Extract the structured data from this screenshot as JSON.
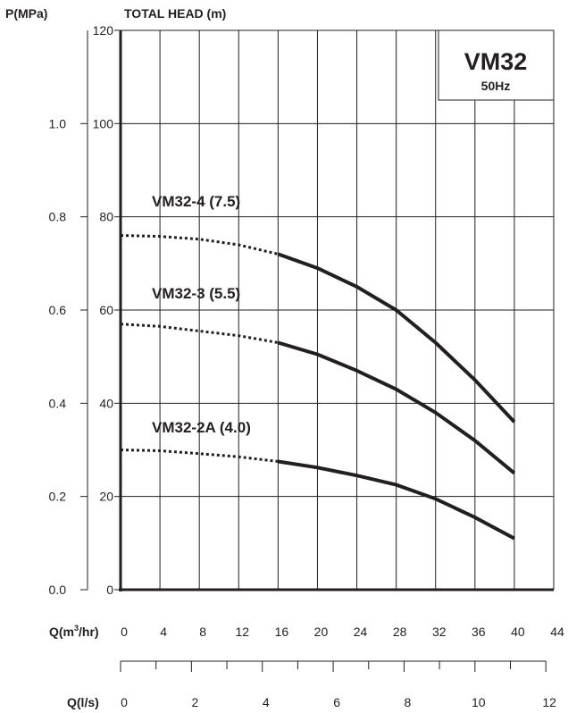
{
  "chart_data": {
    "type": "line",
    "model": "VM32",
    "frequency": "50Hz",
    "ylabel": "TOTAL HEAD (m)",
    "pressure_label": "P(MPa)",
    "xlabel_m3": "Q(m",
    "xlabel_m3_sup": "3",
    "xlabel_m3_tail": "/hr)",
    "xlabel_ls": "Q(l/s)",
    "xlim": [
      0,
      44
    ],
    "ylim": [
      0,
      120
    ],
    "x_ticks": [
      0,
      4,
      8,
      12,
      16,
      20,
      24,
      28,
      32,
      36,
      40,
      44
    ],
    "y_ticks": [
      0,
      20,
      40,
      60,
      80,
      100,
      120
    ],
    "pressure_ticks": [
      {
        "label": "0.0",
        "value": 0.0
      },
      {
        "label": "0.2",
        "value": 0.2
      },
      {
        "label": "0.4",
        "value": 0.4
      },
      {
        "label": "0.6",
        "value": 0.6
      },
      {
        "label": "0.8",
        "value": 0.8
      },
      {
        "label": "1.0",
        "value": 1.0
      }
    ],
    "ls_ticks": [
      0,
      2,
      4,
      6,
      8,
      10,
      12
    ],
    "ls_minor_ticks": [
      0,
      1,
      2,
      3,
      4,
      5,
      6,
      7,
      8,
      9,
      10,
      11,
      12
    ],
    "grid": true,
    "series": [
      {
        "name": "VM32-4 (7.5)",
        "dotted": [
          [
            0,
            76
          ],
          [
            4,
            75.8
          ],
          [
            8,
            75.2
          ],
          [
            12,
            74
          ],
          [
            16,
            72
          ]
        ],
        "solid": [
          [
            16,
            72
          ],
          [
            20,
            69
          ],
          [
            24,
            65
          ],
          [
            28,
            60
          ],
          [
            32,
            53
          ],
          [
            36,
            45
          ],
          [
            40,
            36
          ]
        ]
      },
      {
        "name": "VM32-3 (5.5)",
        "dotted": [
          [
            0,
            57
          ],
          [
            4,
            56.5
          ],
          [
            8,
            55.5
          ],
          [
            12,
            54.5
          ],
          [
            16,
            53
          ]
        ],
        "solid": [
          [
            16,
            53
          ],
          [
            20,
            50.5
          ],
          [
            24,
            47
          ],
          [
            28,
            43
          ],
          [
            32,
            38
          ],
          [
            36,
            32
          ],
          [
            40,
            25
          ]
        ]
      },
      {
        "name": "VM32-2A (4.0)",
        "dotted": [
          [
            0,
            30
          ],
          [
            4,
            29.8
          ],
          [
            8,
            29.2
          ],
          [
            12,
            28.5
          ],
          [
            16,
            27.5
          ]
        ],
        "solid": [
          [
            16,
            27.5
          ],
          [
            20,
            26.2
          ],
          [
            24,
            24.5
          ],
          [
            28,
            22.5
          ],
          [
            32,
            19.5
          ],
          [
            36,
            15.5
          ],
          [
            40,
            11
          ]
        ]
      }
    ]
  }
}
